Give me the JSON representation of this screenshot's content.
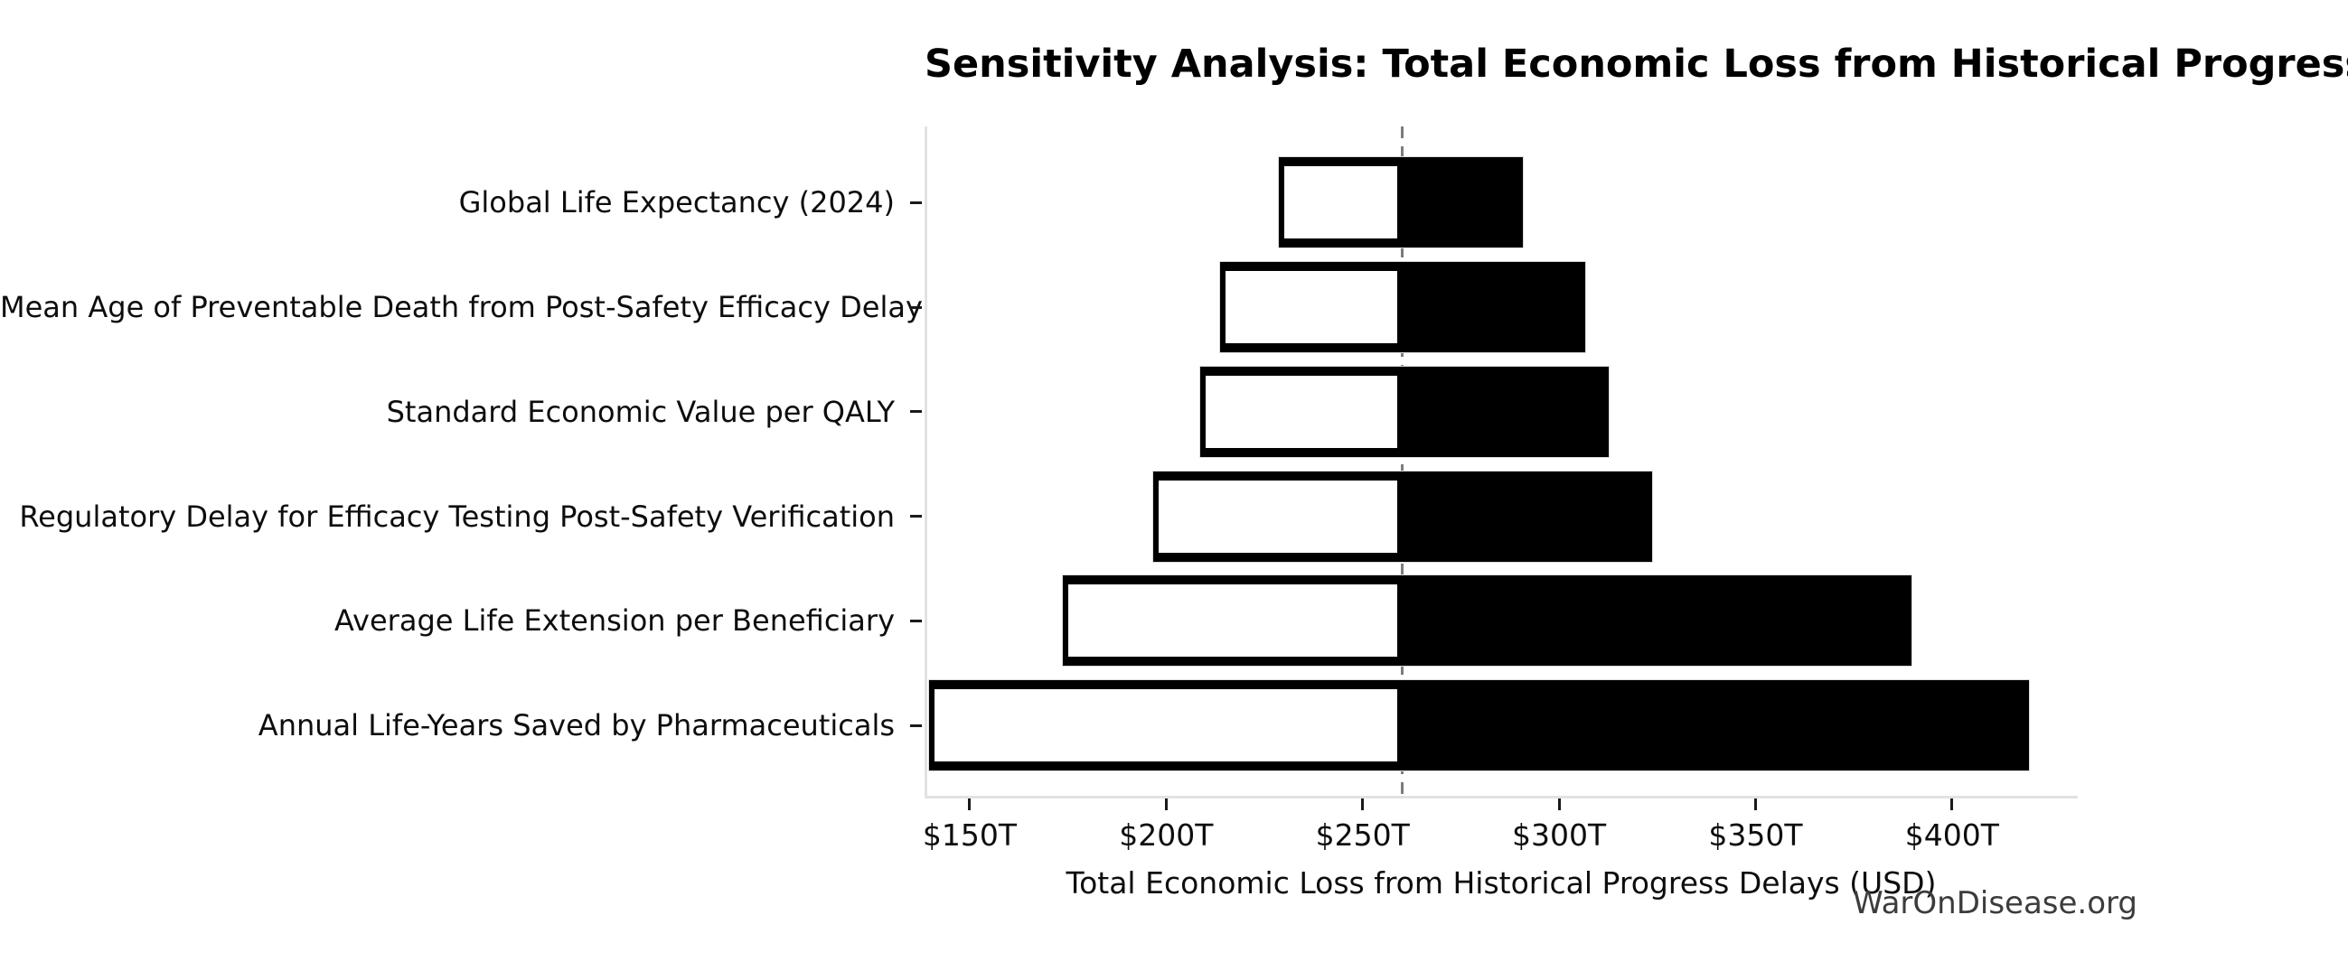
{
  "title": "Sensitivity Analysis: Total Economic Loss from Historical Progress Delays",
  "watermark": "WarOnDisease.org",
  "chart_data": {
    "type": "bar",
    "variant": "tornado-sensitivity",
    "orientation": "horizontal",
    "title": "Sensitivity Analysis: Total Economic Loss from Historical Progress Delays",
    "xlabel": "Total Economic Loss from Historical Progress Delays (USD)",
    "ylabel": "",
    "unit": "trillion USD",
    "categories": [
      "Global Life Expectancy (2024)",
      "Mean Age of Preventable Death from Post-Safety Efficacy Delay",
      "Standard Economic Value per QALY",
      "Regulatory Delay for Efficacy Testing Post-Safety Verification",
      "Average Life Extension per Beneficiary",
      "Annual Life-Years Saved by Pharmaceuticals"
    ],
    "series": [
      {
        "name": "Low estimate (white bar, low end to base case)",
        "values": [
          228,
          213,
          208,
          196,
          173,
          139
        ]
      },
      {
        "name": "High estimate (black bar, base case to high end)",
        "values": [
          290,
          306,
          312,
          323,
          389,
          419
        ]
      }
    ],
    "baseline": 259.4,
    "x_tick_values": [
      150,
      200,
      250,
      300,
      350,
      400
    ],
    "x_tick_labels": [
      "$150T",
      "$200T",
      "$250T",
      "$300T",
      "$350T",
      "$400T"
    ],
    "xlim": [
      138.5,
      432
    ],
    "grid": false,
    "legend": "none",
    "colors": {
      "high_bar": "#000000",
      "low_bar_fill": "#ffffff",
      "low_bar_edge": "#000000",
      "baseline_dash": "#7c7c7c",
      "spine": "#e2e2e2",
      "text": "#0d0d0d",
      "watermark": "#3c3c3c",
      "background": "#ffffff"
    }
  }
}
